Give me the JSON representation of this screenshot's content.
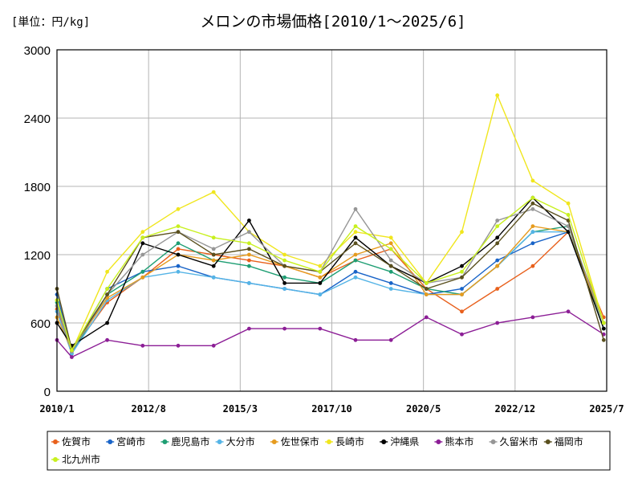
{
  "chart_data": {
    "type": "line",
    "title": "メロンの市場価格[2010/1～2025/6]",
    "unit_label": "[単位：円/kg]",
    "ylim": [
      0,
      3000
    ],
    "yticks": [
      "0",
      "600",
      "1200",
      "1800",
      "2400",
      "3000"
    ],
    "xticks": [
      "2010/1",
      "2012/8",
      "2015/3",
      "2017/10",
      "2020/5",
      "2022/12",
      "2025/7"
    ],
    "xlim": [
      "2010/1",
      "2025/7"
    ],
    "grid": true,
    "legend_position": "bottom",
    "series": [
      {
        "name": "佐賀市",
        "color": "#e8601c",
        "points": [
          [
            "2010/1",
            720
          ],
          [
            "2010/6",
            350
          ],
          [
            "2011/6",
            780
          ],
          [
            "2012/6",
            1000
          ],
          [
            "2013/6",
            1250
          ],
          [
            "2014/6",
            1200
          ],
          [
            "2015/6",
            1150
          ],
          [
            "2016/6",
            1100
          ],
          [
            "2017/6",
            1000
          ],
          [
            "2018/6",
            1150
          ],
          [
            "2019/6",
            1250
          ],
          [
            "2020/6",
            900
          ],
          [
            "2021/6",
            700
          ],
          [
            "2022/6",
            900
          ],
          [
            "2023/6",
            1100
          ],
          [
            "2024/6",
            1400
          ],
          [
            "2025/6",
            650
          ]
        ]
      },
      {
        "name": "宮崎市",
        "color": "#1964c8",
        "points": [
          [
            "2010/1",
            850
          ],
          [
            "2010/6",
            350
          ],
          [
            "2011/6",
            900
          ],
          [
            "2012/6",
            1050
          ],
          [
            "2013/6",
            1100
          ],
          [
            "2014/6",
            1000
          ],
          [
            "2015/6",
            950
          ],
          [
            "2016/6",
            900
          ],
          [
            "2017/6",
            850
          ],
          [
            "2018/6",
            1050
          ],
          [
            "2019/6",
            950
          ],
          [
            "2020/6",
            850
          ],
          [
            "2021/6",
            900
          ],
          [
            "2022/6",
            1150
          ],
          [
            "2023/6",
            1300
          ],
          [
            "2024/6",
            1400
          ],
          [
            "2025/6",
            600
          ]
        ]
      },
      {
        "name": "鹿児島市",
        "color": "#1e9e73",
        "points": [
          [
            "2010/1",
            780
          ],
          [
            "2010/6",
            330
          ],
          [
            "2011/6",
            850
          ],
          [
            "2012/6",
            1050
          ],
          [
            "2013/6",
            1300
          ],
          [
            "2014/6",
            1150
          ],
          [
            "2015/6",
            1100
          ],
          [
            "2016/6",
            1000
          ],
          [
            "2017/6",
            950
          ],
          [
            "2018/6",
            1150
          ],
          [
            "2019/6",
            1050
          ],
          [
            "2020/6",
            900
          ],
          [
            "2021/6",
            850
          ],
          [
            "2022/6",
            1100
          ],
          [
            "2023/6",
            1400
          ],
          [
            "2024/6",
            1450
          ],
          [
            "2025/6",
            550
          ]
        ]
      },
      {
        "name": "大分市",
        "color": "#55b4e6",
        "points": [
          [
            "2010/1",
            700
          ],
          [
            "2010/6",
            330
          ],
          [
            "2011/6",
            800
          ],
          [
            "2012/6",
            1000
          ],
          [
            "2013/6",
            1050
          ],
          [
            "2014/6",
            1000
          ],
          [
            "2015/6",
            950
          ],
          [
            "2016/6",
            900
          ],
          [
            "2017/6",
            850
          ],
          [
            "2018/6",
            1000
          ],
          [
            "2019/6",
            900
          ],
          [
            "2020/6",
            850
          ],
          [
            "2021/6",
            850
          ],
          [
            "2022/6",
            1100
          ],
          [
            "2023/6",
            1400
          ],
          [
            "2024/6",
            1400
          ],
          [
            "2025/6",
            550
          ]
        ]
      },
      {
        "name": "佐世保市",
        "color": "#e69b1e",
        "points": [
          [
            "2010/1",
            650
          ],
          [
            "2010/6",
            360
          ],
          [
            "2011/6",
            820
          ],
          [
            "2012/6",
            1000
          ],
          [
            "2013/6",
            1200
          ],
          [
            "2014/6",
            1150
          ],
          [
            "2015/6",
            1200
          ],
          [
            "2016/6",
            1100
          ],
          [
            "2017/6",
            1000
          ],
          [
            "2018/6",
            1200
          ],
          [
            "2019/6",
            1300
          ],
          [
            "2020/6",
            850
          ],
          [
            "2021/6",
            850
          ],
          [
            "2022/6",
            1100
          ],
          [
            "2023/6",
            1450
          ],
          [
            "2024/6",
            1400
          ],
          [
            "2025/6",
            600
          ]
        ]
      },
      {
        "name": "長崎市",
        "color": "#f0e61e",
        "points": [
          [
            "2010/1",
            800
          ],
          [
            "2010/6",
            350
          ],
          [
            "2011/6",
            1050
          ],
          [
            "2012/6",
            1400
          ],
          [
            "2013/6",
            1600
          ],
          [
            "2014/6",
            1750
          ],
          [
            "2015/6",
            1400
          ],
          [
            "2016/6",
            1200
          ],
          [
            "2017/6",
            1100
          ],
          [
            "2018/6",
            1400
          ],
          [
            "2019/6",
            1350
          ],
          [
            "2020/6",
            950
          ],
          [
            "2021/6",
            1400
          ],
          [
            "2022/6",
            2600
          ],
          [
            "2023/6",
            1850
          ],
          [
            "2024/6",
            1650
          ],
          [
            "2025/6",
            600
          ]
        ]
      },
      {
        "name": "沖縄県",
        "color": "#000000",
        "points": [
          [
            "2010/1",
            600
          ],
          [
            "2010/6",
            400
          ],
          [
            "2011/6",
            600
          ],
          [
            "2012/6",
            1300
          ],
          [
            "2013/6",
            1200
          ],
          [
            "2014/6",
            1100
          ],
          [
            "2015/6",
            1500
          ],
          [
            "2016/6",
            950
          ],
          [
            "2017/6",
            950
          ],
          [
            "2018/6",
            1350
          ],
          [
            "2019/6",
            1100
          ],
          [
            "2020/6",
            950
          ],
          [
            "2021/6",
            1100
          ],
          [
            "2022/6",
            1350
          ],
          [
            "2023/6",
            1700
          ],
          [
            "2024/6",
            1400
          ],
          [
            "2025/6",
            550
          ]
        ]
      },
      {
        "name": "熊本市",
        "color": "#8c1e96",
        "points": [
          [
            "2010/1",
            450
          ],
          [
            "2010/6",
            300
          ],
          [
            "2011/6",
            450
          ],
          [
            "2012/6",
            400
          ],
          [
            "2013/6",
            400
          ],
          [
            "2014/6",
            400
          ],
          [
            "2015/6",
            550
          ],
          [
            "2016/6",
            550
          ],
          [
            "2017/6",
            550
          ],
          [
            "2018/6",
            450
          ],
          [
            "2019/6",
            450
          ],
          [
            "2020/6",
            650
          ],
          [
            "2021/6",
            500
          ],
          [
            "2022/6",
            600
          ],
          [
            "2023/6",
            650
          ],
          [
            "2024/6",
            700
          ],
          [
            "2025/6",
            500
          ]
        ]
      },
      {
        "name": "久留米市",
        "color": "#969696",
        "points": [
          [
            "2010/1",
            750
          ],
          [
            "2010/6",
            350
          ],
          [
            "2011/6",
            850
          ],
          [
            "2012/6",
            1200
          ],
          [
            "2013/6",
            1400
          ],
          [
            "2014/6",
            1250
          ],
          [
            "2015/6",
            1400
          ],
          [
            "2016/6",
            1100
          ],
          [
            "2017/6",
            1050
          ],
          [
            "2018/6",
            1600
          ],
          [
            "2019/6",
            1150
          ],
          [
            "2020/6",
            950
          ],
          [
            "2021/6",
            1000
          ],
          [
            "2022/6",
            1500
          ],
          [
            "2023/6",
            1600
          ],
          [
            "2024/6",
            1450
          ],
          [
            "2025/6",
            600
          ]
        ]
      },
      {
        "name": "福岡市",
        "color": "#5a501e",
        "points": [
          [
            "2010/1",
            900
          ],
          [
            "2010/6",
            370
          ],
          [
            "2011/6",
            850
          ],
          [
            "2012/6",
            1350
          ],
          [
            "2013/6",
            1400
          ],
          [
            "2014/6",
            1200
          ],
          [
            "2015/6",
            1250
          ],
          [
            "2016/6",
            1100
          ],
          [
            "2017/6",
            1050
          ],
          [
            "2018/6",
            1300
          ],
          [
            "2019/6",
            1100
          ],
          [
            "2020/6",
            900
          ],
          [
            "2021/6",
            1000
          ],
          [
            "2022/6",
            1300
          ],
          [
            "2023/6",
            1650
          ],
          [
            "2024/6",
            1500
          ],
          [
            "2025/6",
            450
          ]
        ]
      },
      {
        "name": "北九州市",
        "color": "#c8f01e",
        "points": [
          [
            "2010/1",
            800
          ],
          [
            "2010/6",
            360
          ],
          [
            "2011/6",
            900
          ],
          [
            "2012/6",
            1350
          ],
          [
            "2013/6",
            1450
          ],
          [
            "2014/6",
            1350
          ],
          [
            "2015/6",
            1300
          ],
          [
            "2016/6",
            1150
          ],
          [
            "2017/6",
            1050
          ],
          [
            "2018/6",
            1450
          ],
          [
            "2019/6",
            1250
          ],
          [
            "2020/6",
            950
          ],
          [
            "2021/6",
            1050
          ],
          [
            "2022/6",
            1450
          ],
          [
            "2023/6",
            1700
          ],
          [
            "2024/6",
            1550
          ],
          [
            "2025/6",
            600
          ]
        ]
      }
    ]
  }
}
